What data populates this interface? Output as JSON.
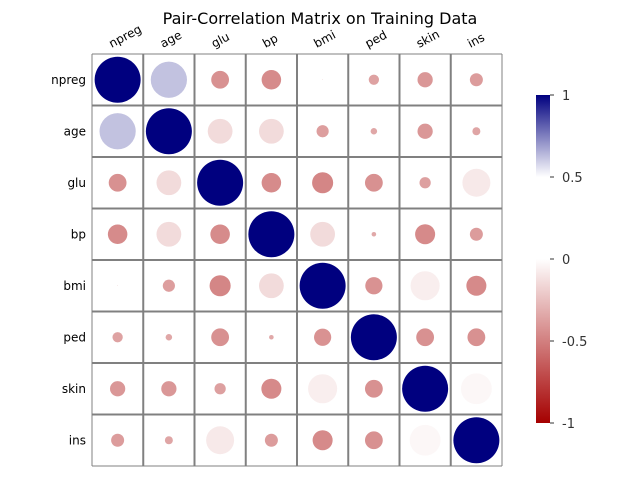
{
  "chart_data": {
    "type": "heatmap",
    "title": "Pair-Correlation Matrix on Training Data",
    "variables": [
      "npreg",
      "age",
      "glu",
      "bp",
      "bmi",
      "ped",
      "skin",
      "ins"
    ],
    "matrix": [
      [
        1.0,
        0.62,
        -0.15,
        -0.18,
        0.0,
        -0.05,
        -0.11,
        -0.08
      ],
      [
        0.62,
        1.0,
        0.29,
        0.29,
        -0.07,
        -0.02,
        -0.11,
        -0.03
      ],
      [
        -0.15,
        0.29,
        1.0,
        -0.18,
        -0.21,
        -0.15,
        -0.06,
        0.37
      ],
      [
        -0.18,
        0.29,
        -0.18,
        1.0,
        0.29,
        -0.01,
        -0.19,
        -0.08
      ],
      [
        0.0,
        -0.07,
        -0.21,
        0.29,
        1.0,
        -0.14,
        0.4,
        -0.19
      ],
      [
        -0.05,
        -0.02,
        -0.15,
        -0.01,
        -0.14,
        1.0,
        -0.15,
        -0.15
      ],
      [
        -0.11,
        -0.11,
        -0.06,
        -0.19,
        0.4,
        -0.15,
        1.0,
        0.45
      ],
      [
        -0.08,
        -0.03,
        0.37,
        -0.08,
        -0.19,
        -0.15,
        0.45,
        1.0
      ]
    ],
    "colorbar": {
      "range": [
        -1,
        1
      ],
      "ticks": [
        1,
        0.5,
        0,
        -0.5,
        -1
      ],
      "tick_labels": [
        "1",
        "0.5",
        "0",
        "-0.5",
        "-1"
      ],
      "colors": {
        "low": "#a50000",
        "mid": "#ffffff",
        "high": "#00007f"
      }
    },
    "grid": true,
    "legend": "right"
  }
}
